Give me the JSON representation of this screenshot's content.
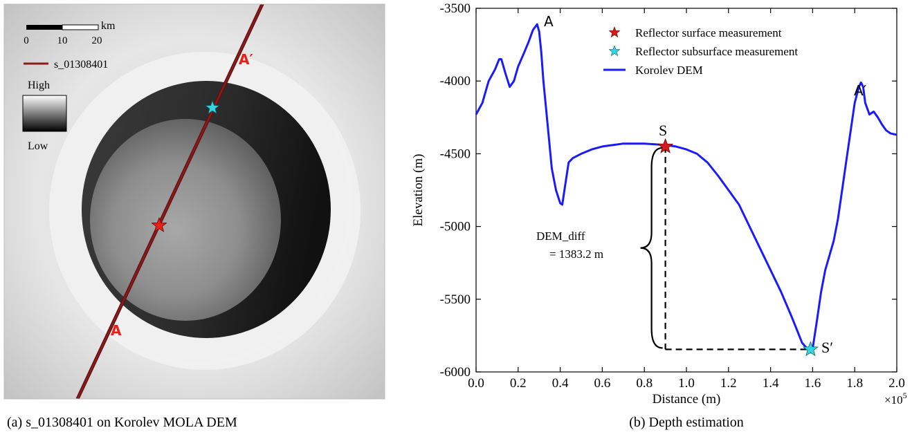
{
  "left_panel": {
    "caption": "(a) s_01308401 on Korolev MOLA DEM",
    "scalebar": {
      "unit": "km",
      "ticks": [
        "0",
        "10",
        "20"
      ]
    },
    "track_legend": "s_01308401",
    "colorbar": {
      "high": "High",
      "low": "Low"
    },
    "markers": {
      "a": "A",
      "a_prime": "A′"
    },
    "colors": {
      "track": "#8b1a1a",
      "label": "#e8201a",
      "surface_star": "#e8201a",
      "subsurface_star": "#33d6e0"
    }
  },
  "right_panel": {
    "caption": "(b) Depth estimation",
    "legend": [
      {
        "label": "Reflector surface measurement",
        "marker": "red-star"
      },
      {
        "label": "Reflector subsurface measurement",
        "marker": "cyan-star"
      },
      {
        "label": "Korolev DEM",
        "marker": "blue-line"
      }
    ],
    "annotations": {
      "a": "A",
      "a_prime": "A′",
      "s": "S",
      "s_prime": "S′",
      "dem_diff_line1": "DEM_diff",
      "dem_diff_line2": "= 1383.2 m"
    },
    "x_exponent_label": "×10",
    "x_exponent_power": "5",
    "colors": {
      "line": "#1a1aff",
      "surface_star": "#d61a1a",
      "subsurface_star": "#33d6e0"
    }
  },
  "chart_data": {
    "type": "line",
    "title": "",
    "xlabel": "Distance (m)",
    "ylabel": "Elevation (m)",
    "xlim": [
      0,
      2.0
    ],
    "ylim": [
      -6000,
      -3500
    ],
    "x_ticks": [
      "0.0",
      "0.2",
      "0.4",
      "0.6",
      "0.8",
      "1.0",
      "1.2",
      "1.4",
      "1.6",
      "1.8",
      "2.0"
    ],
    "y_ticks": [
      "-3500",
      "-4000",
      "-4500",
      "-5000",
      "-5500",
      "-6000"
    ],
    "grid": false,
    "legend_position": "top-right",
    "series": [
      {
        "name": "Korolev DEM",
        "x": [
          0.0,
          0.03,
          0.06,
          0.09,
          0.11,
          0.12,
          0.14,
          0.16,
          0.18,
          0.2,
          0.23,
          0.25,
          0.27,
          0.28,
          0.29,
          0.3,
          0.31,
          0.32,
          0.34,
          0.36,
          0.38,
          0.4,
          0.41,
          0.42,
          0.44,
          0.46,
          0.5,
          0.55,
          0.6,
          0.7,
          0.8,
          0.9,
          0.95,
          1.0,
          1.05,
          1.1,
          1.15,
          1.2,
          1.25,
          1.3,
          1.35,
          1.4,
          1.45,
          1.5,
          1.55,
          1.58,
          1.6,
          1.62,
          1.64,
          1.66,
          1.68,
          1.7,
          1.72,
          1.74,
          1.76,
          1.78,
          1.8,
          1.82,
          1.83,
          1.84,
          1.85,
          1.87,
          1.89,
          1.91,
          1.93,
          1.95,
          1.97,
          2.0
        ],
        "y": [
          -4230,
          -4150,
          -4000,
          -3920,
          -3850,
          -3850,
          -3950,
          -4040,
          -4000,
          -3900,
          -3800,
          -3730,
          -3650,
          -3630,
          -3610,
          -3660,
          -3800,
          -4000,
          -4300,
          -4600,
          -4750,
          -4840,
          -4850,
          -4750,
          -4560,
          -4530,
          -4500,
          -4470,
          -4450,
          -4430,
          -4430,
          -4440,
          -4450,
          -4470,
          -4500,
          -4560,
          -4650,
          -4750,
          -4850,
          -5000,
          -5150,
          -5300,
          -5450,
          -5620,
          -5800,
          -5850,
          -5840,
          -5650,
          -5450,
          -5300,
          -5200,
          -5100,
          -4950,
          -4750,
          -4550,
          -4350,
          -4150,
          -4040,
          -4010,
          -4040,
          -4150,
          -4230,
          -4210,
          -4250,
          -4300,
          -4340,
          -4360,
          -4370
        ]
      }
    ],
    "points": [
      {
        "name": "Reflector surface measurement",
        "label": "S",
        "x": 0.9,
        "y": -4450
      },
      {
        "name": "Reflector subsurface measurement",
        "label": "S′",
        "x": 1.59,
        "y": -5845
      }
    ]
  }
}
